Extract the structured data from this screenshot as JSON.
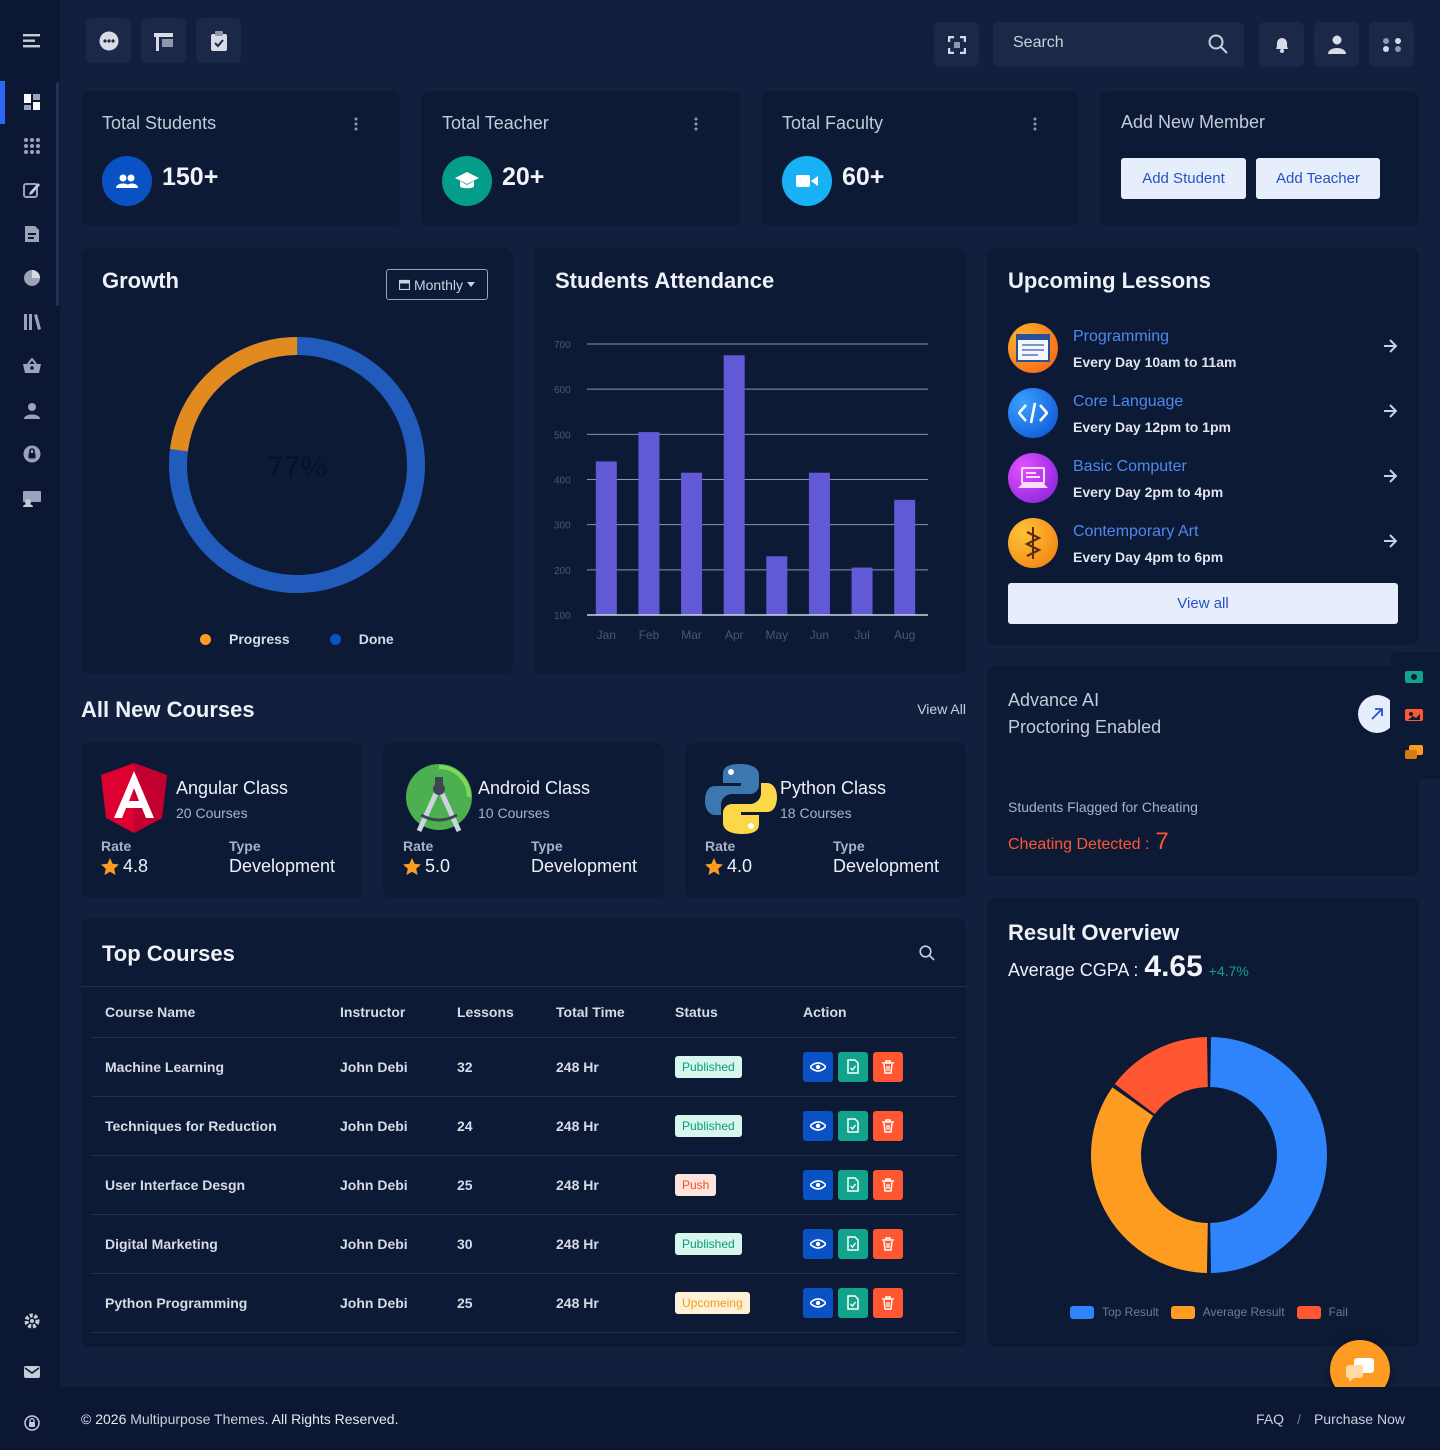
{
  "topbar": {
    "search_placeholder": "Search"
  },
  "stats": [
    {
      "title": "Total Students",
      "value": "150+",
      "icon": "users-icon",
      "color": "#0a52c4"
    },
    {
      "title": "Total Teacher",
      "value": "20+",
      "icon": "graduation-cap-icon",
      "color": "#059c89"
    },
    {
      "title": "Total Faculty",
      "value": "60+",
      "icon": "video-icon",
      "color": "#18b1f5"
    }
  ],
  "add_member": {
    "title": "Add New Member",
    "add_student": "Add Student",
    "add_teacher": "Add Teacher"
  },
  "growth": {
    "title": "Growth",
    "period": "Monthly",
    "percent": "77%",
    "progress_fraction": 0.77,
    "legend_progress": "Progress",
    "legend_done": "Done"
  },
  "attendance": {
    "title": "Students Attendance",
    "chart_data": {
      "type": "bar",
      "categories": [
        "Jan",
        "Feb",
        "Mar",
        "Apr",
        "May",
        "Jun",
        "Jul",
        "Aug"
      ],
      "values": [
        440,
        505,
        415,
        675,
        230,
        415,
        205,
        355
      ],
      "yticks": [
        100,
        200,
        300,
        400,
        500,
        600,
        700
      ],
      "ylim": [
        100,
        700
      ],
      "color": "#6159d6",
      "grid": true
    }
  },
  "lessons": {
    "title": "Upcoming Lessons",
    "items": [
      {
        "name": "Programming",
        "time": "Every Day 10am to 11am"
      },
      {
        "name": "Core Language",
        "time": "Every Day 12pm to 1pm"
      },
      {
        "name": "Basic Computer",
        "time": "Every Day 2pm to 4pm"
      },
      {
        "name": "Contemporary Art",
        "time": "Every Day 4pm to 6pm"
      }
    ],
    "view_all": "View all"
  },
  "ai": {
    "title_line1": "Advance AI",
    "title_line2": "Proctoring Enabled",
    "flagged": "Students Flagged for Cheating",
    "detected_label": "Cheating Detected :",
    "detected_count": "7"
  },
  "new_courses": {
    "title": "All New Courses",
    "view_all": "View All",
    "rate_label": "Rate",
    "type_label": "Type",
    "items": [
      {
        "name": "Angular Class",
        "count": "20 Courses",
        "rate": "4.8",
        "type": "Development"
      },
      {
        "name": "Android Class",
        "count": "10 Courses",
        "rate": "5.0",
        "type": "Development"
      },
      {
        "name": "Python Class",
        "count": "18 Courses",
        "rate": "4.0",
        "type": "Development"
      }
    ]
  },
  "top_courses": {
    "title": "Top Courses",
    "headers": [
      "Course Name",
      "Instructor",
      "Lessons",
      "Total Time",
      "Status",
      "Action"
    ],
    "rows": [
      {
        "name": "Machine Learning",
        "instructor": "John Debi",
        "lessons": "32",
        "time": "248 Hr",
        "status": "Published"
      },
      {
        "name": "Techniques for Reduction",
        "instructor": "John Debi",
        "lessons": "24",
        "time": "248 Hr",
        "status": "Published"
      },
      {
        "name": "User Interface Desgn",
        "instructor": "John Debi",
        "lessons": "25",
        "time": "248 Hr",
        "status": "Push"
      },
      {
        "name": "Digital Marketing",
        "instructor": "John Debi",
        "lessons": "30",
        "time": "248 Hr",
        "status": "Published"
      },
      {
        "name": "Python Programming",
        "instructor": "John Debi",
        "lessons": "25",
        "time": "248 Hr",
        "status": "Upcomeing"
      }
    ],
    "status_colors": {
      "Published": {
        "bg": "#d6f6ee",
        "fg": "#0b9b78"
      },
      "Push": {
        "bg": "#fde4de",
        "fg": "#f1521e"
      },
      "Upcomeing": {
        "bg": "#fff1d8",
        "fg": "#f49b16"
      }
    }
  },
  "results": {
    "title": "Result Overview",
    "cgpa_label": "Average CGPA :",
    "cgpa": "4.65",
    "change": "+4.7%",
    "chart_data": {
      "type": "pie",
      "labels": [
        "Top Result",
        "Average Result",
        "Fail"
      ],
      "values": [
        50,
        35,
        15
      ],
      "colors": [
        "#2f84fb",
        "#fe9c21",
        "#fe5731"
      ]
    }
  },
  "footer": {
    "year": "© 2026",
    "brand": "Multipurpose Themes",
    "rights": ". All Rights Reserved.",
    "faq": "FAQ",
    "sep": "/",
    "purchase": "Purchase Now"
  }
}
